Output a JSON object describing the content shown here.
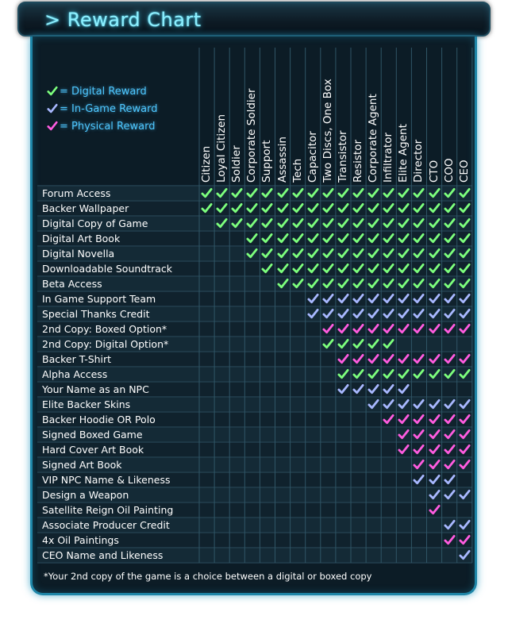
{
  "title": "> Reward Chart",
  "legend": [
    {
      "type": "D",
      "label": "= Digital Reward",
      "color": "#7dff7d"
    },
    {
      "type": "G",
      "label": "= In-Game Reward",
      "color": "#a8b8ff"
    },
    {
      "type": "P",
      "label": "= Physical Reward",
      "color": "#ff5ce0"
    }
  ],
  "check_icon": "checkmark-icon",
  "tiers": [
    "Citizen",
    "Loyal Citizen",
    "Soldier",
    "Corporate Soldier",
    "Support",
    "Assassin",
    "Tech",
    "Capacitor",
    "Two Discs, One Box",
    "Transistor",
    "Resistor",
    "Corporate Agent",
    "Infiltrator",
    "Elite Agent",
    "Director",
    "CTO",
    "COO",
    "CEO"
  ],
  "rewards": [
    {
      "label": "Forum Access",
      "cells": "DDDDDDDDDDDDDDDDDD"
    },
    {
      "label": "Backer Wallpaper",
      "cells": "DDDDDDDDDDDDDDDDDD"
    },
    {
      "label": "Digital Copy of Game",
      "cells": "-DDDDDDDDDDDDDDDDD"
    },
    {
      "label": "Digital Art Book",
      "cells": "---DDDDDDDDDDDDDDD"
    },
    {
      "label": "Digital Novella",
      "cells": "---DDDDDDDDDDDDDDD"
    },
    {
      "label": "Downloadable Soundtrack",
      "cells": "----DDDDDDDDDDDDDD"
    },
    {
      "label": "Beta Access",
      "cells": "-----DDDDDDDDDDDDD"
    },
    {
      "label": "In Game Support Team",
      "cells": "-------GGGGGGGGGGG"
    },
    {
      "label": "Special Thanks Credit",
      "cells": "-------GGGGGGGGGGG"
    },
    {
      "label": "2nd Copy: Boxed Option*",
      "cells": "--------PPPPPPPPPP"
    },
    {
      "label": "2nd Copy: Digital Option*",
      "cells": "--------DDDDD-----"
    },
    {
      "label": "Backer T-Shirt",
      "cells": "---------PPPPPPPPP"
    },
    {
      "label": "Alpha Access",
      "cells": "---------DDDDDDDDD"
    },
    {
      "label": "Your Name as an NPC",
      "cells": "---------GGGGG----"
    },
    {
      "label": "Elite Backer Skins",
      "cells": "-----------GGGGGGG"
    },
    {
      "label": "Backer Hoodie OR Polo",
      "cells": "------------PPPPPP"
    },
    {
      "label": "Signed Boxed Game",
      "cells": "-------------PPPPP"
    },
    {
      "label": "Hard Cover Art Book",
      "cells": "-------------PPPPP"
    },
    {
      "label": "Signed Art Book",
      "cells": "--------------PPPP"
    },
    {
      "label": "VIP NPC Name & Likeness",
      "cells": "--------------GGG-"
    },
    {
      "label": "Design a Weapon",
      "cells": "---------------GGG"
    },
    {
      "label": "Satellite Reign Oil Painting",
      "cells": "---------------P--"
    },
    {
      "label": "Associate Producer Credit",
      "cells": "----------------GG"
    },
    {
      "label": "4x Oil Paintings",
      "cells": "----------------PP"
    },
    {
      "label": "CEO Name and Likeness",
      "cells": "-----------------G"
    }
  ],
  "footnote": "*Your 2nd copy of the game is a choice between a digital or boxed copy"
}
